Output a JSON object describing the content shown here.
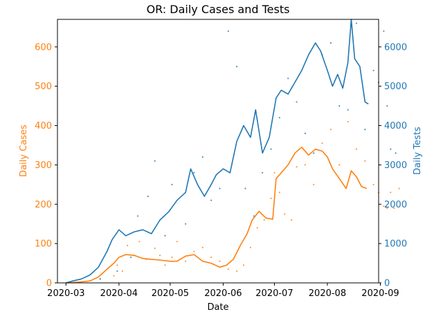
{
  "chart_data": {
    "type": "line",
    "title": "OR: Daily Cases and Tests",
    "xlabel": "Date",
    "xlim": [
      "2020-02-25",
      "2020-08-31"
    ],
    "x_ticks": [
      "2020-03",
      "2020-04",
      "2020-05",
      "2020-06",
      "2020-07",
      "2020-08",
      "2020-09"
    ],
    "grid": false,
    "left_axis": {
      "label": "Daily Cases",
      "color": "#ff7f0e",
      "ylim": [
        0,
        670
      ],
      "ticks": [
        "0",
        "100",
        "200",
        "300",
        "400",
        "500",
        "600"
      ]
    },
    "right_axis": {
      "label": "Daily Tests",
      "color": "#1f77b4",
      "ylim": [
        0,
        6700
      ],
      "ticks": [
        "0",
        "1000",
        "2000",
        "3000",
        "4000",
        "5000",
        "6000"
      ]
    },
    "series": [
      {
        "axis": "left",
        "color": "#ff7f0e",
        "x": [
          "2020-03-01",
          "2020-03-08",
          "2020-03-15",
          "2020-03-20",
          "2020-03-25",
          "2020-03-29",
          "2020-04-01",
          "2020-04-05",
          "2020-04-10",
          "2020-04-15",
          "2020-04-20",
          "2020-04-25",
          "2020-05-01",
          "2020-05-05",
          "2020-05-10",
          "2020-05-15",
          "2020-05-20",
          "2020-05-25",
          "2020-05-30",
          "2020-06-03",
          "2020-06-07",
          "2020-06-11",
          "2020-06-15",
          "2020-06-18",
          "2020-06-22",
          "2020-06-26",
          "2020-06-30",
          "2020-07-02",
          "2020-07-05",
          "2020-07-09",
          "2020-07-13",
          "2020-07-17",
          "2020-07-21",
          "2020-07-25",
          "2020-07-29",
          "2020-08-01",
          "2020-08-04",
          "2020-08-08",
          "2020-08-12",
          "2020-08-15",
          "2020-08-18",
          "2020-08-21",
          "2020-08-24"
        ],
        "y": [
          0,
          2,
          5,
          15,
          35,
          50,
          65,
          72,
          70,
          62,
          60,
          58,
          55,
          55,
          68,
          72,
          55,
          50,
          40,
          45,
          60,
          95,
          125,
          160,
          182,
          165,
          162,
          265,
          280,
          300,
          330,
          345,
          325,
          340,
          335,
          320,
          290,
          265,
          240,
          285,
          270,
          245,
          240
        ]
      },
      {
        "axis": "right",
        "color": "#1f77b4",
        "x": [
          "2020-03-01",
          "2020-03-05",
          "2020-03-10",
          "2020-03-15",
          "2020-03-20",
          "2020-03-25",
          "2020-03-28",
          "2020-04-01",
          "2020-04-05",
          "2020-04-10",
          "2020-04-15",
          "2020-04-20",
          "2020-04-25",
          "2020-04-30",
          "2020-05-05",
          "2020-05-10",
          "2020-05-13",
          "2020-05-17",
          "2020-05-21",
          "2020-05-25",
          "2020-05-28",
          "2020-06-01",
          "2020-06-05",
          "2020-06-09",
          "2020-06-13",
          "2020-06-17",
          "2020-06-20",
          "2020-06-24",
          "2020-06-28",
          "2020-07-02",
          "2020-07-05",
          "2020-07-09",
          "2020-07-13",
          "2020-07-17",
          "2020-07-21",
          "2020-07-25",
          "2020-07-28",
          "2020-08-01",
          "2020-08-04",
          "2020-08-07",
          "2020-08-10",
          "2020-08-13",
          "2020-08-15",
          "2020-08-17",
          "2020-08-20",
          "2020-08-23",
          "2020-08-25"
        ],
        "y": [
          0,
          50,
          100,
          200,
          400,
          800,
          1100,
          1350,
          1200,
          1300,
          1350,
          1250,
          1600,
          1800,
          2100,
          2300,
          2900,
          2500,
          2200,
          2500,
          2750,
          2900,
          2800,
          3600,
          4000,
          3700,
          4400,
          3300,
          3700,
          4700,
          4900,
          4800,
          5100,
          5400,
          5800,
          6100,
          5900,
          5400,
          5000,
          5300,
          4950,
          5600,
          6700,
          5700,
          5500,
          4600,
          4550
        ]
      }
    ],
    "scatter_points": {
      "cases": [
        [
          8,
          1
        ],
        [
          20,
          10
        ],
        [
          28,
          18
        ],
        [
          30,
          45
        ],
        [
          33,
          30
        ],
        [
          36,
          95
        ],
        [
          40,
          70
        ],
        [
          43,
          105
        ],
        [
          47,
          60
        ],
        [
          52,
          88
        ],
        [
          55,
          70
        ],
        [
          58,
          45
        ],
        [
          62,
          65
        ],
        [
          65,
          105
        ],
        [
          70,
          55
        ],
        [
          75,
          80
        ],
        [
          80,
          90
        ],
        [
          85,
          65
        ],
        [
          90,
          55
        ],
        [
          95,
          35
        ],
        [
          100,
          30
        ],
        [
          104,
          45
        ],
        [
          108,
          90
        ],
        [
          112,
          140
        ],
        [
          116,
          160
        ],
        [
          120,
          215
        ],
        [
          122,
          280
        ],
        [
          125,
          230
        ],
        [
          128,
          175
        ],
        [
          132,
          160
        ],
        [
          135,
          295
        ],
        [
          140,
          300
        ],
        [
          145,
          250
        ],
        [
          150,
          355
        ],
        [
          155,
          390
        ],
        [
          160,
          300
        ],
        [
          165,
          410
        ],
        [
          170,
          340
        ],
        [
          175,
          310
        ],
        [
          180,
          250
        ],
        [
          183,
          230
        ],
        [
          186,
          195
        ],
        [
          188,
          190
        ],
        [
          190,
          230
        ],
        [
          192,
          190
        ],
        [
          195,
          240
        ]
      ],
      "tests": [
        [
          20,
          100
        ],
        [
          30,
          300
        ],
        [
          38,
          650
        ],
        [
          42,
          1700
        ],
        [
          48,
          2200
        ],
        [
          52,
          3100
        ],
        [
          58,
          1200
        ],
        [
          62,
          2500
        ],
        [
          70,
          1500
        ],
        [
          75,
          2800
        ],
        [
          80,
          3200
        ],
        [
          85,
          2100
        ],
        [
          90,
          2400
        ],
        [
          95,
          6400
        ],
        [
          100,
          5500
        ],
        [
          105,
          2400
        ],
        [
          110,
          1700
        ],
        [
          115,
          2800
        ],
        [
          120,
          3400
        ],
        [
          125,
          4200
        ],
        [
          130,
          5200
        ],
        [
          135,
          4600
        ],
        [
          140,
          3800
        ],
        [
          145,
          3300
        ],
        [
          150,
          5800
        ],
        [
          155,
          6100
        ],
        [
          160,
          4500
        ],
        [
          165,
          4400
        ],
        [
          170,
          6600
        ],
        [
          175,
          3900
        ],
        [
          180,
          5400
        ],
        [
          183,
          5100
        ],
        [
          186,
          6400
        ],
        [
          188,
          4500
        ],
        [
          190,
          3400
        ],
        [
          193,
          3300
        ]
      ]
    }
  }
}
